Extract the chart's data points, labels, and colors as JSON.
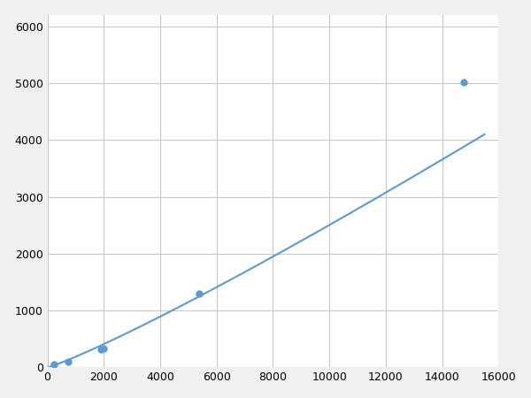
{
  "x_points": [
    250,
    750,
    1900,
    2000,
    5375,
    14750
  ],
  "y_points": [
    60,
    100,
    315,
    340,
    1290,
    5010
  ],
  "line_color": "#5b9bd5",
  "marker_color": "#5b9bd5",
  "marker_size": 6,
  "linewidth": 1.5,
  "xlim": [
    0,
    16000
  ],
  "ylim": [
    0,
    6200
  ],
  "xticks": [
    0,
    2000,
    4000,
    6000,
    8000,
    10000,
    12000,
    14000,
    16000
  ],
  "yticks": [
    0,
    1000,
    2000,
    3000,
    4000,
    5000,
    6000
  ],
  "grid_color": "#c8c8c8",
  "background_color": "#ffffff",
  "fig_facecolor": "#f0f0f0"
}
